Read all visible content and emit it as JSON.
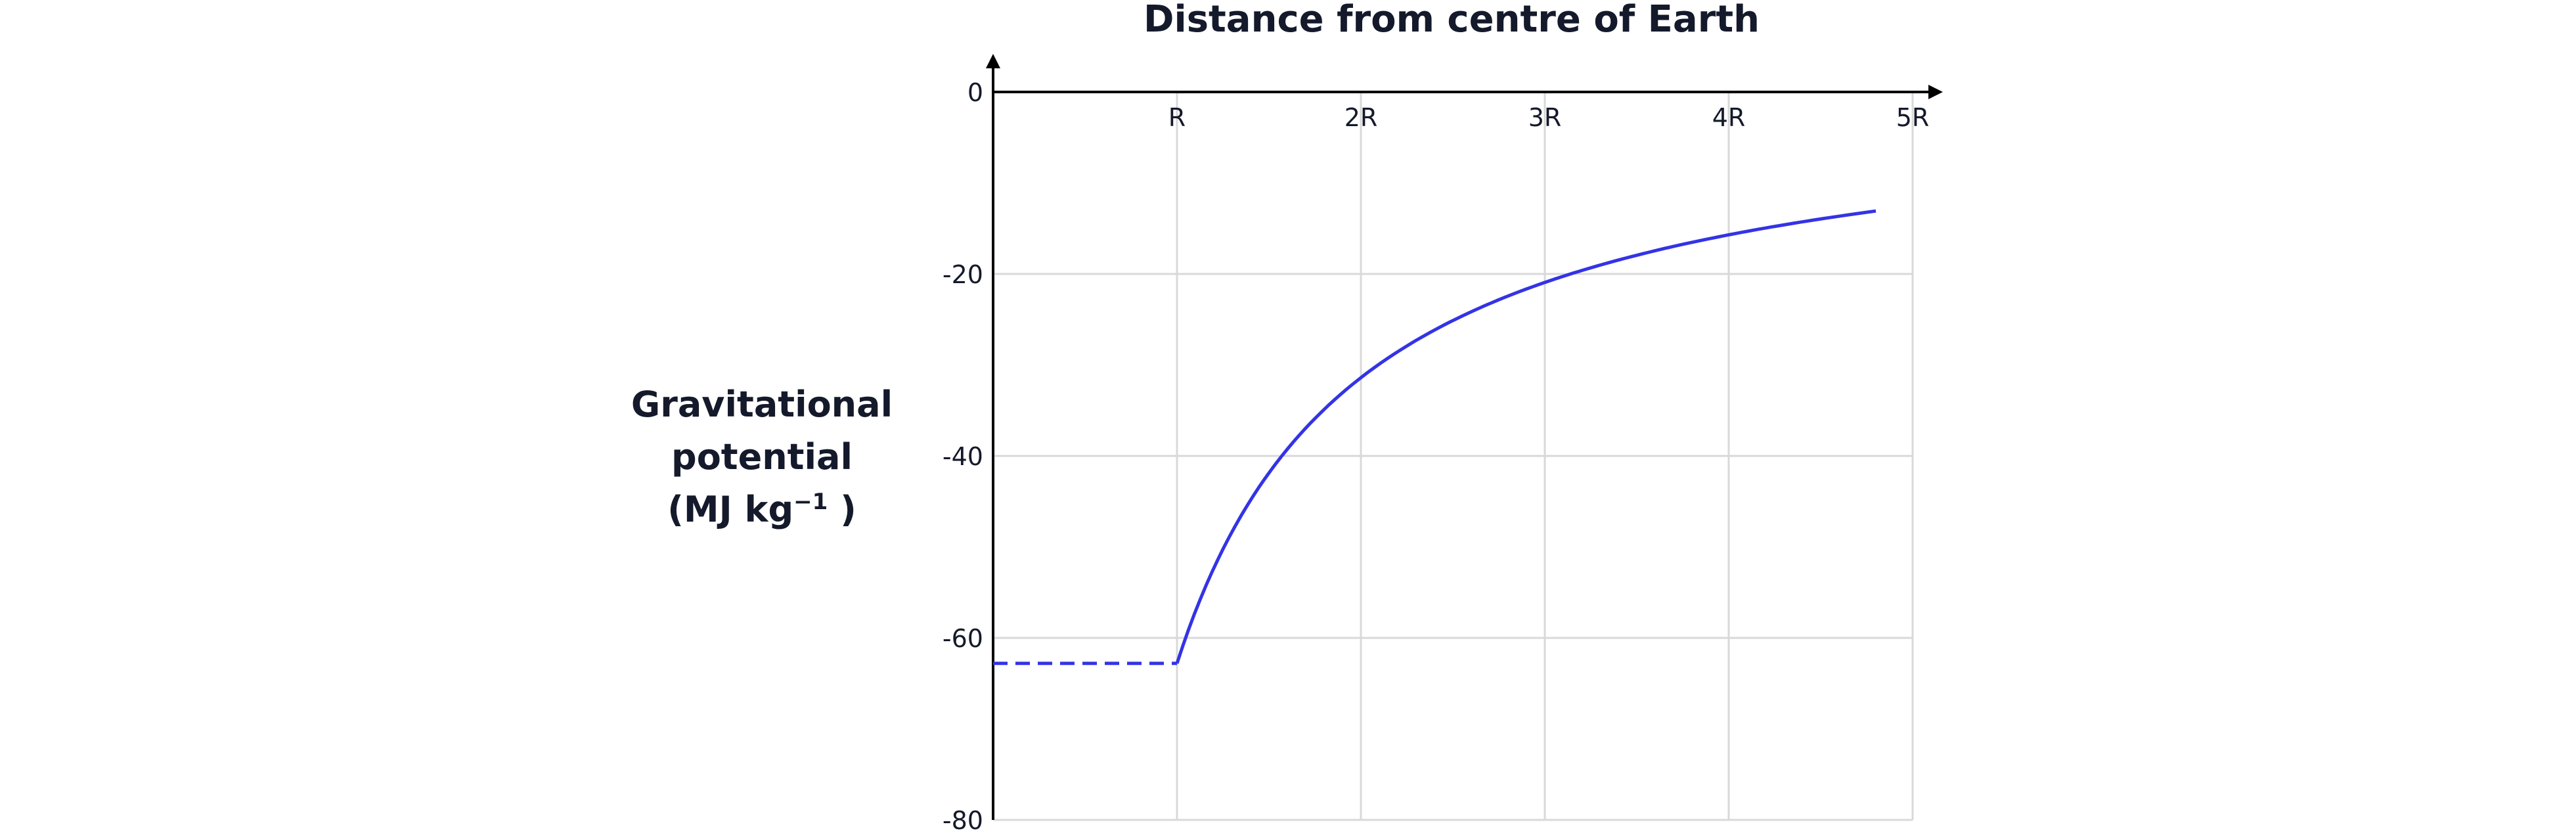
{
  "chart_data": {
    "type": "line",
    "title": "Distance from centre of Earth",
    "ylabel": {
      "line1": "Gravitational",
      "line2": "potential",
      "line3_prefix": "(MJ kg",
      "line3_superscript": "−1",
      "line3_suffix": " )"
    },
    "xlabel": "",
    "x_ticks": [
      "R",
      "2R",
      "3R",
      "4R",
      "5R"
    ],
    "x_tick_values": [
      1,
      2,
      3,
      4,
      5
    ],
    "xlim": [
      0,
      5
    ],
    "y_ticks": [
      "0",
      "-20",
      "-40",
      "-60",
      "-80"
    ],
    "y_tick_values": [
      0,
      -20,
      -40,
      -60,
      -80
    ],
    "ylim": [
      -80,
      0
    ],
    "grid": true,
    "x_axis_position": "top",
    "series": [
      {
        "style": "solid",
        "color": "#3333e6",
        "formula": "V = -62.8 / x",
        "x": [
          1,
          1.5,
          2,
          2.5,
          3,
          3.5,
          4,
          4.5,
          4.8
        ],
        "y": [
          -62.8,
          -41.9,
          -31.4,
          -25.1,
          -20.9,
          -17.9,
          -15.7,
          -14.0,
          -13.1
        ]
      },
      {
        "style": "dashed",
        "color": "#3333e6",
        "x": [
          0,
          1
        ],
        "y": [
          -62.8,
          -62.8
        ]
      }
    ],
    "colors": {
      "axis": "#000000",
      "grid": "#d9d9d9",
      "line": "#3333e6"
    }
  }
}
